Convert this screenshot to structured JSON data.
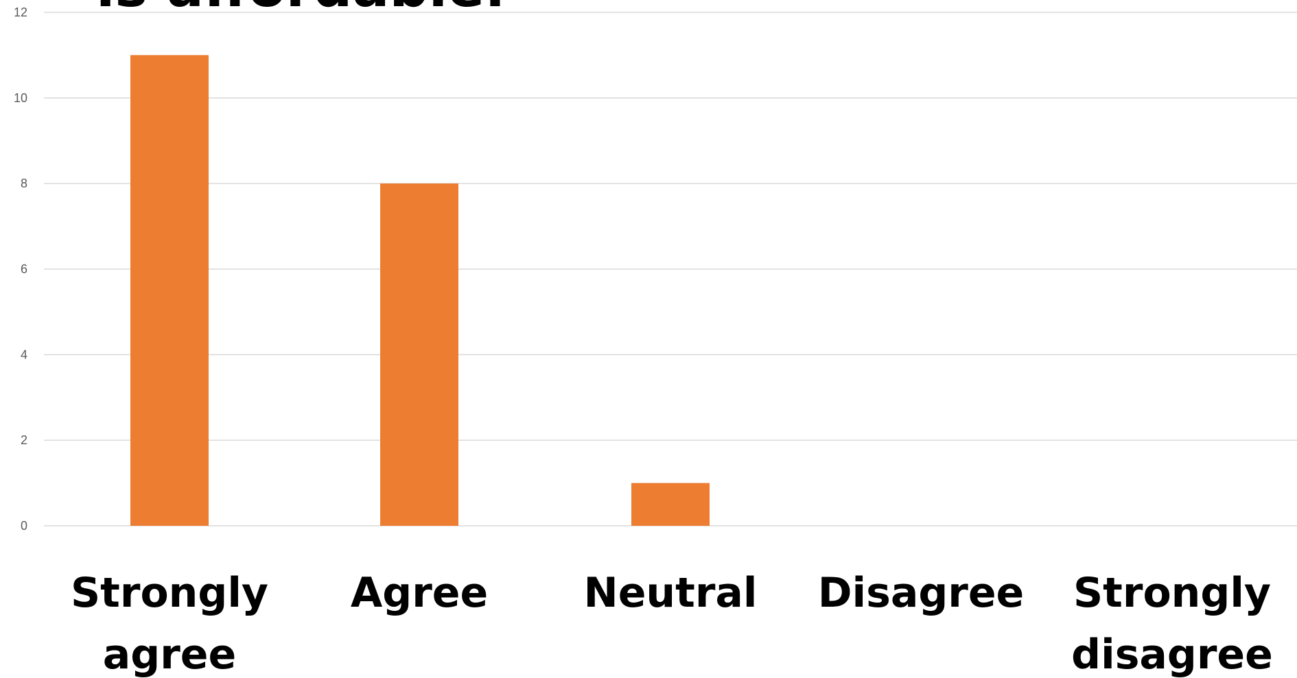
{
  "chart_data": {
    "type": "bar",
    "title": "is affordable.",
    "categories": [
      "Strongly agree",
      "Agree",
      "Neutral",
      "Disagree",
      "Strongly disagree"
    ],
    "category_lines": [
      [
        "Strongly",
        "agree"
      ],
      [
        "Agree"
      ],
      [
        "Neutral"
      ],
      [
        "Disagree"
      ],
      [
        "Strongly",
        "disagree"
      ]
    ],
    "values": [
      11,
      8,
      1,
      0,
      0
    ],
    "ylim": [
      0,
      12
    ],
    "yticks": [
      0,
      2,
      4,
      6,
      8,
      10,
      12
    ],
    "xlabel": "",
    "ylabel": "",
    "grid": true,
    "legend": "none",
    "colors": {
      "bar": "#ED7D31",
      "grid": "#D9D9D9",
      "tick_text": "#595959",
      "category_text": "#000000"
    }
  }
}
